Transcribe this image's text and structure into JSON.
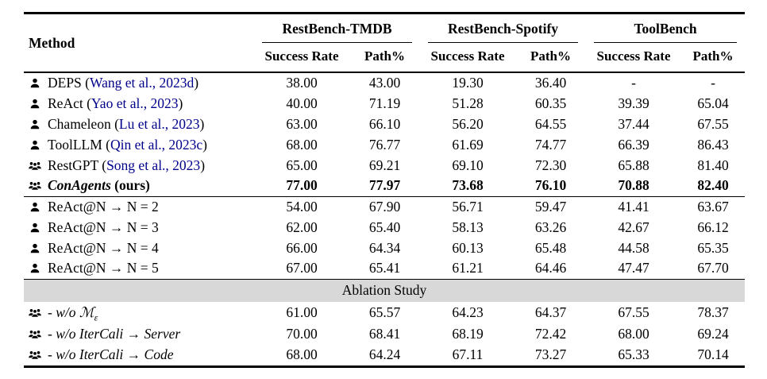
{
  "colors": {
    "background": "#ffffff",
    "text": "#000000",
    "citation": "#00008b",
    "band_background": "#d8d8d8"
  },
  "table": {
    "method_header": "Method",
    "groups": [
      "RestBench-TMDB",
      "RestBench-Spotify",
      "ToolBench"
    ],
    "subheaders": [
      "Success Rate",
      "Path%",
      "Success Rate",
      "Path%",
      "Success Rate",
      "Path%"
    ],
    "punct": {
      "cite_open": " (",
      "cite_close": ")"
    },
    "sections": [
      {
        "name": "main-results",
        "rows": [
          {
            "icon": "user",
            "label": "DEPS",
            "cite": "Wang et al., 2023d",
            "values": [
              "38.00",
              "43.00",
              "19.30",
              "36.40",
              "-",
              "-"
            ]
          },
          {
            "icon": "user",
            "label": "ReAct",
            "cite": "Yao et al., 2023",
            "values": [
              "40.00",
              "71.19",
              "51.28",
              "60.35",
              "39.39",
              "65.04"
            ]
          },
          {
            "icon": "user",
            "label": "Chameleon",
            "cite": "Lu et al., 2023",
            "values": [
              "63.00",
              "66.10",
              "56.20",
              "64.55",
              "37.44",
              "67.55"
            ]
          },
          {
            "icon": "user",
            "label": "ToolLLM",
            "cite": "Qin et al., 2023c",
            "values": [
              "68.00",
              "76.77",
              "61.69",
              "74.77",
              "66.39",
              "86.43"
            ]
          },
          {
            "icon": "users",
            "label": "RestGPT",
            "cite": "Song et al., 2023",
            "values": [
              "65.00",
              "69.21",
              "69.10",
              "72.30",
              "65.88",
              "81.40"
            ]
          },
          {
            "icon": "users",
            "label": "ConAgents",
            "suffix": " (ours)",
            "style": "ours",
            "values": [
              "77.00",
              "77.97",
              "73.68",
              "76.10",
              "70.88",
              "82.40"
            ]
          }
        ]
      },
      {
        "name": "react-at-n",
        "rows": [
          {
            "icon": "user",
            "label": "ReAct@N → N = 2",
            "values": [
              "54.00",
              "67.90",
              "56.71",
              "59.47",
              "41.41",
              "63.67"
            ]
          },
          {
            "icon": "user",
            "label": "ReAct@N → N = 3",
            "values": [
              "62.00",
              "65.40",
              "58.13",
              "63.26",
              "42.67",
              "66.12"
            ]
          },
          {
            "icon": "user",
            "label": "ReAct@N → N = 4",
            "values": [
              "66.00",
              "64.34",
              "60.13",
              "65.48",
              "44.58",
              "65.35"
            ]
          },
          {
            "icon": "user",
            "label": "ReAct@N → N = 5",
            "values": [
              "67.00",
              "65.41",
              "61.21",
              "64.46",
              "47.47",
              "67.70"
            ]
          }
        ]
      },
      {
        "name": "ablation",
        "band_label": "Ablation Study",
        "rows": [
          {
            "icon": "users",
            "label": "- w/o ",
            "math": "ℳ",
            "sub": "ε",
            "style": "italic",
            "values": [
              "61.00",
              "65.57",
              "64.23",
              "64.37",
              "67.55",
              "78.37"
            ]
          },
          {
            "icon": "users",
            "label": "- w/o IterCali → Server",
            "style": "italic",
            "values": [
              "70.00",
              "68.41",
              "68.19",
              "72.42",
              "68.00",
              "69.24"
            ]
          },
          {
            "icon": "users",
            "label": "- w/o IterCali → Code",
            "style": "italic",
            "values": [
              "68.00",
              "64.24",
              "67.11",
              "73.27",
              "65.33",
              "70.14"
            ]
          }
        ]
      }
    ]
  }
}
